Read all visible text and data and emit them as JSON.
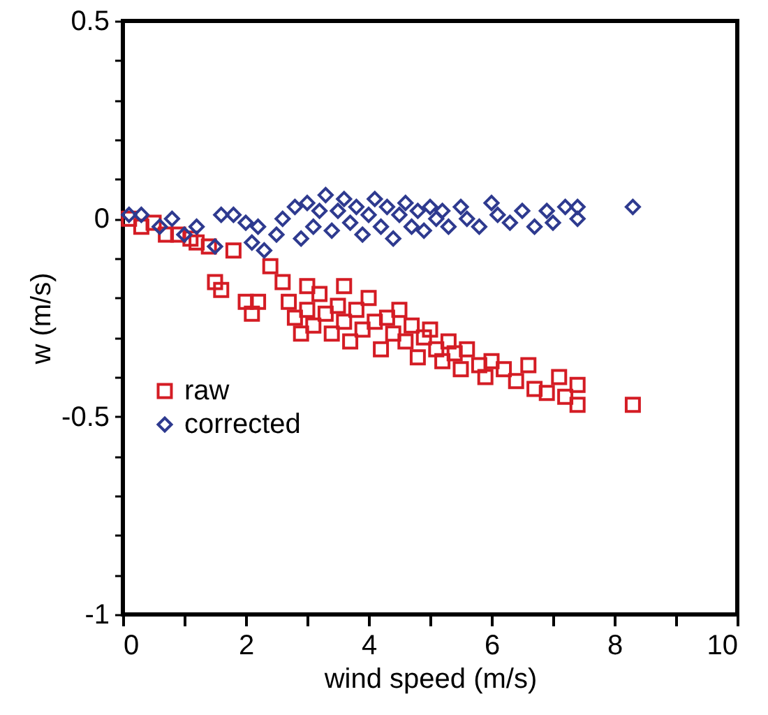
{
  "chart_data": {
    "type": "scatter",
    "xlabel": "wind speed (m/s)",
    "ylabel": "w (m/s)",
    "xlim": [
      0,
      10
    ],
    "ylim": [
      -1,
      0.5
    ],
    "xticks": [
      0,
      {
        "value": 1,
        "label": null
      },
      2,
      {
        "value": 3,
        "label": null
      },
      4,
      {
        "value": 5,
        "label": null
      },
      6,
      {
        "value": 7,
        "label": null
      },
      8,
      {
        "value": 9,
        "label": null
      },
      10
    ],
    "yticks": [
      {
        "value": -1,
        "label": "-1"
      },
      {
        "value": -0.9,
        "label": null
      },
      {
        "value": -0.8,
        "label": null
      },
      {
        "value": -0.7,
        "label": null
      },
      {
        "value": -0.6,
        "label": null
      },
      {
        "value": -0.5,
        "label": "-0.5"
      },
      {
        "value": -0.4,
        "label": null
      },
      {
        "value": -0.3,
        "label": null
      },
      {
        "value": -0.2,
        "label": null
      },
      {
        "value": -0.1,
        "label": null
      },
      0,
      {
        "value": 0.1,
        "label": null
      },
      {
        "value": 0.2,
        "label": null
      },
      {
        "value": 0.3,
        "label": null
      },
      {
        "value": 0.4,
        "label": null
      },
      0.5
    ],
    "grid": false,
    "legend": "left",
    "series": [
      {
        "name": "raw",
        "color": "#d41c24",
        "marker": "square",
        "x": [
          0.1,
          0.3,
          0.5,
          0.7,
          0.9,
          1.1,
          1.2,
          1.4,
          1.5,
          1.6,
          1.8,
          2.0,
          2.1,
          2.2,
          2.4,
          2.6,
          2.7,
          2.8,
          2.9,
          3.0,
          3.0,
          3.1,
          3.2,
          3.3,
          3.4,
          3.5,
          3.6,
          3.6,
          3.7,
          3.8,
          3.9,
          4.0,
          4.1,
          4.2,
          4.3,
          4.4,
          4.5,
          4.6,
          4.7,
          4.8,
          4.9,
          5.0,
          5.1,
          5.2,
          5.3,
          5.4,
          5.5,
          5.6,
          5.8,
          5.9,
          6.0,
          6.2,
          6.4,
          6.6,
          6.7,
          6.9,
          7.1,
          7.2,
          7.4,
          7.4,
          8.3
        ],
        "values": [
          0.0,
          -0.02,
          -0.01,
          -0.04,
          -0.04,
          -0.05,
          -0.06,
          -0.07,
          -0.16,
          -0.18,
          -0.08,
          -0.21,
          -0.24,
          -0.21,
          -0.12,
          -0.16,
          -0.21,
          -0.25,
          -0.29,
          -0.17,
          -0.23,
          -0.27,
          -0.19,
          -0.24,
          -0.29,
          -0.22,
          -0.17,
          -0.26,
          -0.31,
          -0.23,
          -0.28,
          -0.2,
          -0.26,
          -0.33,
          -0.25,
          -0.29,
          -0.23,
          -0.31,
          -0.27,
          -0.35,
          -0.3,
          -0.28,
          -0.33,
          -0.36,
          -0.31,
          -0.34,
          -0.38,
          -0.33,
          -0.37,
          -0.4,
          -0.36,
          -0.38,
          -0.41,
          -0.37,
          -0.43,
          -0.44,
          -0.4,
          -0.45,
          -0.42,
          -0.47,
          -0.47
        ]
      },
      {
        "name": "corrected",
        "color": "#2e3a8f",
        "marker": "diamond",
        "x": [
          0.1,
          0.3,
          0.6,
          0.8,
          1.0,
          1.2,
          1.5,
          1.6,
          1.8,
          2.0,
          2.1,
          2.2,
          2.3,
          2.5,
          2.6,
          2.8,
          2.9,
          3.0,
          3.1,
          3.2,
          3.3,
          3.4,
          3.5,
          3.6,
          3.7,
          3.8,
          3.9,
          4.0,
          4.1,
          4.2,
          4.3,
          4.4,
          4.5,
          4.6,
          4.7,
          4.8,
          4.9,
          5.0,
          5.1,
          5.2,
          5.3,
          5.5,
          5.6,
          5.8,
          6.0,
          6.1,
          6.3,
          6.5,
          6.7,
          6.9,
          7.0,
          7.2,
          7.4,
          7.4,
          8.3
        ],
        "values": [
          0.01,
          0.01,
          -0.02,
          0.0,
          -0.04,
          -0.02,
          -0.07,
          0.01,
          0.01,
          -0.01,
          -0.06,
          -0.02,
          -0.08,
          -0.04,
          0.0,
          0.03,
          -0.05,
          0.04,
          -0.02,
          0.02,
          0.06,
          -0.03,
          0.02,
          0.05,
          -0.01,
          0.03,
          -0.04,
          0.01,
          0.05,
          -0.02,
          0.03,
          -0.05,
          0.01,
          0.04,
          -0.02,
          0.02,
          -0.03,
          0.03,
          0.0,
          0.02,
          -0.02,
          0.03,
          0.0,
          -0.02,
          0.04,
          0.01,
          -0.01,
          0.02,
          -0.02,
          0.02,
          -0.01,
          0.03,
          0.0,
          0.03,
          0.03
        ]
      }
    ]
  }
}
